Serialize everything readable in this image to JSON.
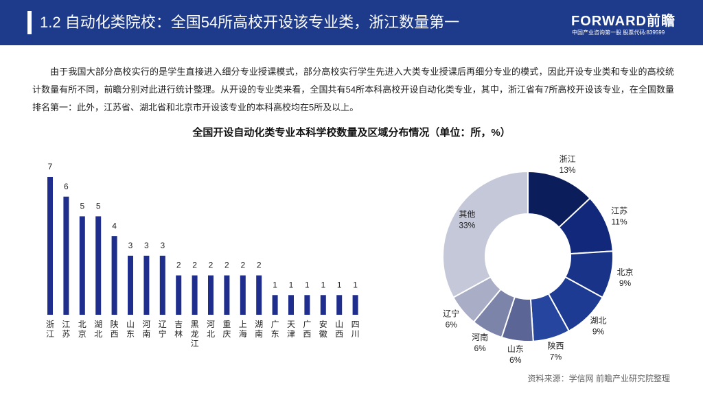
{
  "header": {
    "title": "1.2 自动化类院校：全国54所高校开设该专业类，浙江数量第一",
    "logo": "FORWARD前瞻",
    "logo_sub": "中国产业咨询第一股  股票代码:839599"
  },
  "paragraph": "由于我国大部分高校实行的是学生直接进入细分专业授课模式，部分高校实行学生先进入大类专业授课后再细分专业的模式，因此开设专业类和专业的高校统计数量有所不同，前瞻分别对此进行统计整理。从开设的专业类来看，全国共有54所本科高校开设自动化类专业，其中，浙江省有7所高校开设该专业，在全国数量排名第一：此外，江苏省、湖北省和北京市开设该专业的本科高校均在5所及以上。",
  "chart_title": "全国开设自动化类专业本科学校数量及区域分布情况（单位：所，%）",
  "chart_data": [
    {
      "type": "bar",
      "categories": [
        "浙江",
        "江苏",
        "北京",
        "湖北",
        "陕西",
        "山东",
        "河南",
        "辽宁",
        "吉林",
        "黑龙江",
        "河北",
        "重庆",
        "上海",
        "湖南",
        "广东",
        "天津",
        "广西",
        "安徽",
        "山西",
        "四川"
      ],
      "values": [
        7,
        6,
        5,
        5,
        4,
        3,
        3,
        3,
        2,
        2,
        2,
        2,
        2,
        2,
        1,
        1,
        1,
        1,
        1,
        1
      ],
      "color": "#1f2e8c"
    },
    {
      "type": "donut",
      "categories": [
        "浙江",
        "江苏",
        "北京",
        "湖北",
        "陕西",
        "山东",
        "河南",
        "辽宁",
        "其他"
      ],
      "values": [
        13,
        11,
        9,
        9,
        7,
        6,
        6,
        6,
        33
      ],
      "value_labels": [
        "13%",
        "11%",
        "9%",
        "9%",
        "7%",
        "6%",
        "6%",
        "6%",
        "33%"
      ],
      "colors": [
        "#0c1d5c",
        "#12287a",
        "#183388",
        "#1d3b93",
        "#25459e",
        "#5b6596",
        "#7d84a9",
        "#a9adc5",
        "#c5c8d8"
      ]
    }
  ],
  "source": "资料来源：学信网 前瞻产业研究院整理"
}
